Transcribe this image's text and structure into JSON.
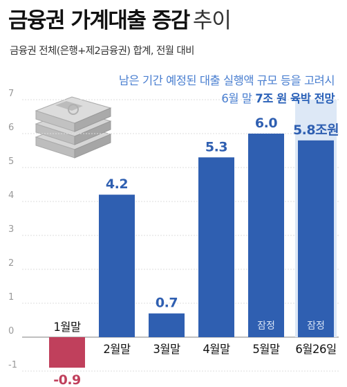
{
  "title": {
    "bold": "금융권 가계대출 증감",
    "light": "추이"
  },
  "subtitle": "금융권 전체(은행+제2금융권) 합계, 전월 대비",
  "note": {
    "line1": "남은 기간 예정된 대출 실행액 규모 등을 고려시",
    "line2_prefix": "6월 말 ",
    "line2_bold": "7조 원 육박 전망"
  },
  "colors": {
    "positive": "#2f5fb1",
    "negative": "#c0405c",
    "projection": "#dde8f6",
    "grid": "#dddddd",
    "axis": "#999999",
    "positive_label": "#2f5fb1",
    "negative_label": "#c0405c"
  },
  "icon": "money-stack-icon",
  "chart_data": {
    "type": "bar",
    "categories": [
      "1월말",
      "2월말",
      "3월말",
      "4월말",
      "5월말",
      "6월26일"
    ],
    "values": [
      -0.9,
      4.2,
      0.7,
      5.3,
      6.0,
      5.8
    ],
    "value_labels": [
      "-0.9",
      "4.2",
      "0.7",
      "5.3",
      "6.0",
      "5.8조원"
    ],
    "bar_tags": [
      "",
      "",
      "",
      "",
      "잠정",
      "잠정"
    ],
    "projection": {
      "category": "6월26일",
      "value": 7
    },
    "y_ticks": [
      "-1",
      "0",
      "1",
      "2",
      "3",
      "4",
      "5",
      "6",
      "7"
    ],
    "ylim": [
      -1,
      7
    ],
    "grid": true,
    "title": "금융권 가계대출 증감 추이"
  }
}
